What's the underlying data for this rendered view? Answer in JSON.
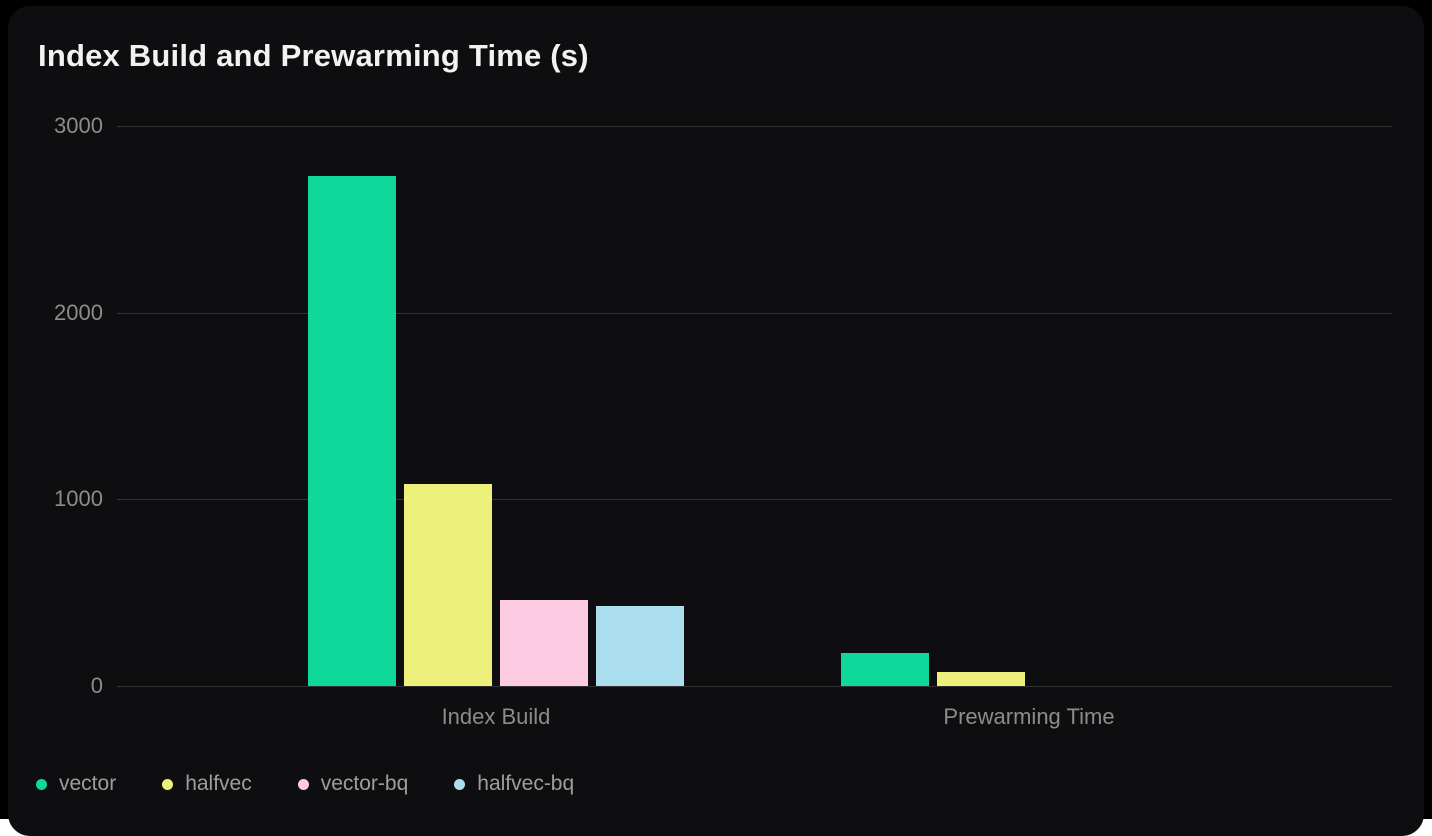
{
  "page": {
    "background_color": "#000000",
    "card_background_color": "#0e0e10",
    "bottom_strip_color": "#ffffff"
  },
  "chart_data": {
    "type": "bar",
    "title": "Index Build and Prewarming Time (s)",
    "categories": [
      "Index Build",
      "Prewarming Time"
    ],
    "series": [
      {
        "name": "vector",
        "color": "#0ed89a",
        "values": [
          2730,
          175
        ]
      },
      {
        "name": "halfvec",
        "color": "#edf17c",
        "values": [
          1080,
          75
        ]
      },
      {
        "name": "vector-bq",
        "color": "#fccae1",
        "values": [
          460,
          0
        ]
      },
      {
        "name": "halfvec-bq",
        "color": "#aadeee",
        "values": [
          430,
          0
        ]
      }
    ],
    "xlabel": "",
    "ylabel": "",
    "ylim": [
      0,
      3000
    ],
    "yticks": [
      3000,
      2000,
      1000,
      0
    ],
    "ytick_labels": [
      "3000",
      "2000",
      "1000",
      "0"
    ],
    "grid": true,
    "legend_position": "bottom-left",
    "colors": {
      "grid_line": "#333333",
      "axis_tick_text": "#8c8c8c",
      "category_label_text": "#8c8c8c",
      "legend_text": "#9e9e9e",
      "title_text": "#f2f2f2"
    }
  }
}
